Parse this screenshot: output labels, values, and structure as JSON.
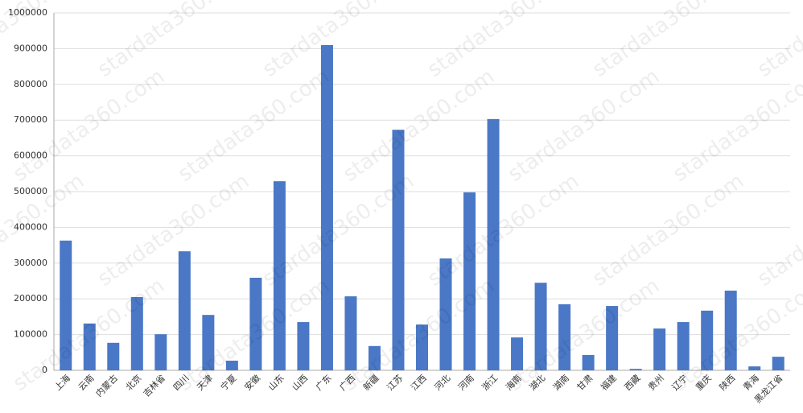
{
  "chart_data": {
    "type": "bar",
    "watermark": "stardata360.com",
    "categories": [
      "上海",
      "云南",
      "内蒙古",
      "北京",
      "吉林省",
      "四川",
      "天津",
      "宁夏",
      "安徽",
      "山东",
      "山西",
      "广东",
      "广西",
      "新疆",
      "江苏",
      "江西",
      "河北",
      "河南",
      "浙江",
      "海南",
      "湖北",
      "湖南",
      "甘肃",
      "福建",
      "西藏",
      "贵州",
      "辽宁",
      "重庆",
      "陕西",
      "青海",
      "黑龙江省"
    ],
    "values": [
      363000,
      131000,
      77000,
      205000,
      101000,
      333000,
      155000,
      27000,
      259000,
      529000,
      135000,
      910000,
      207000,
      68000,
      673000,
      128000,
      313000,
      498000,
      703000,
      92000,
      245000,
      185000,
      43000,
      180000,
      4000,
      117000,
      135000,
      167000,
      223000,
      11000,
      38000
    ],
    "color": "#4a78c6",
    "ylim": [
      0,
      1000000
    ],
    "yticks": [
      0,
      100000,
      200000,
      300000,
      400000,
      500000,
      600000,
      700000,
      800000,
      900000,
      1000000
    ],
    "grid": true
  }
}
